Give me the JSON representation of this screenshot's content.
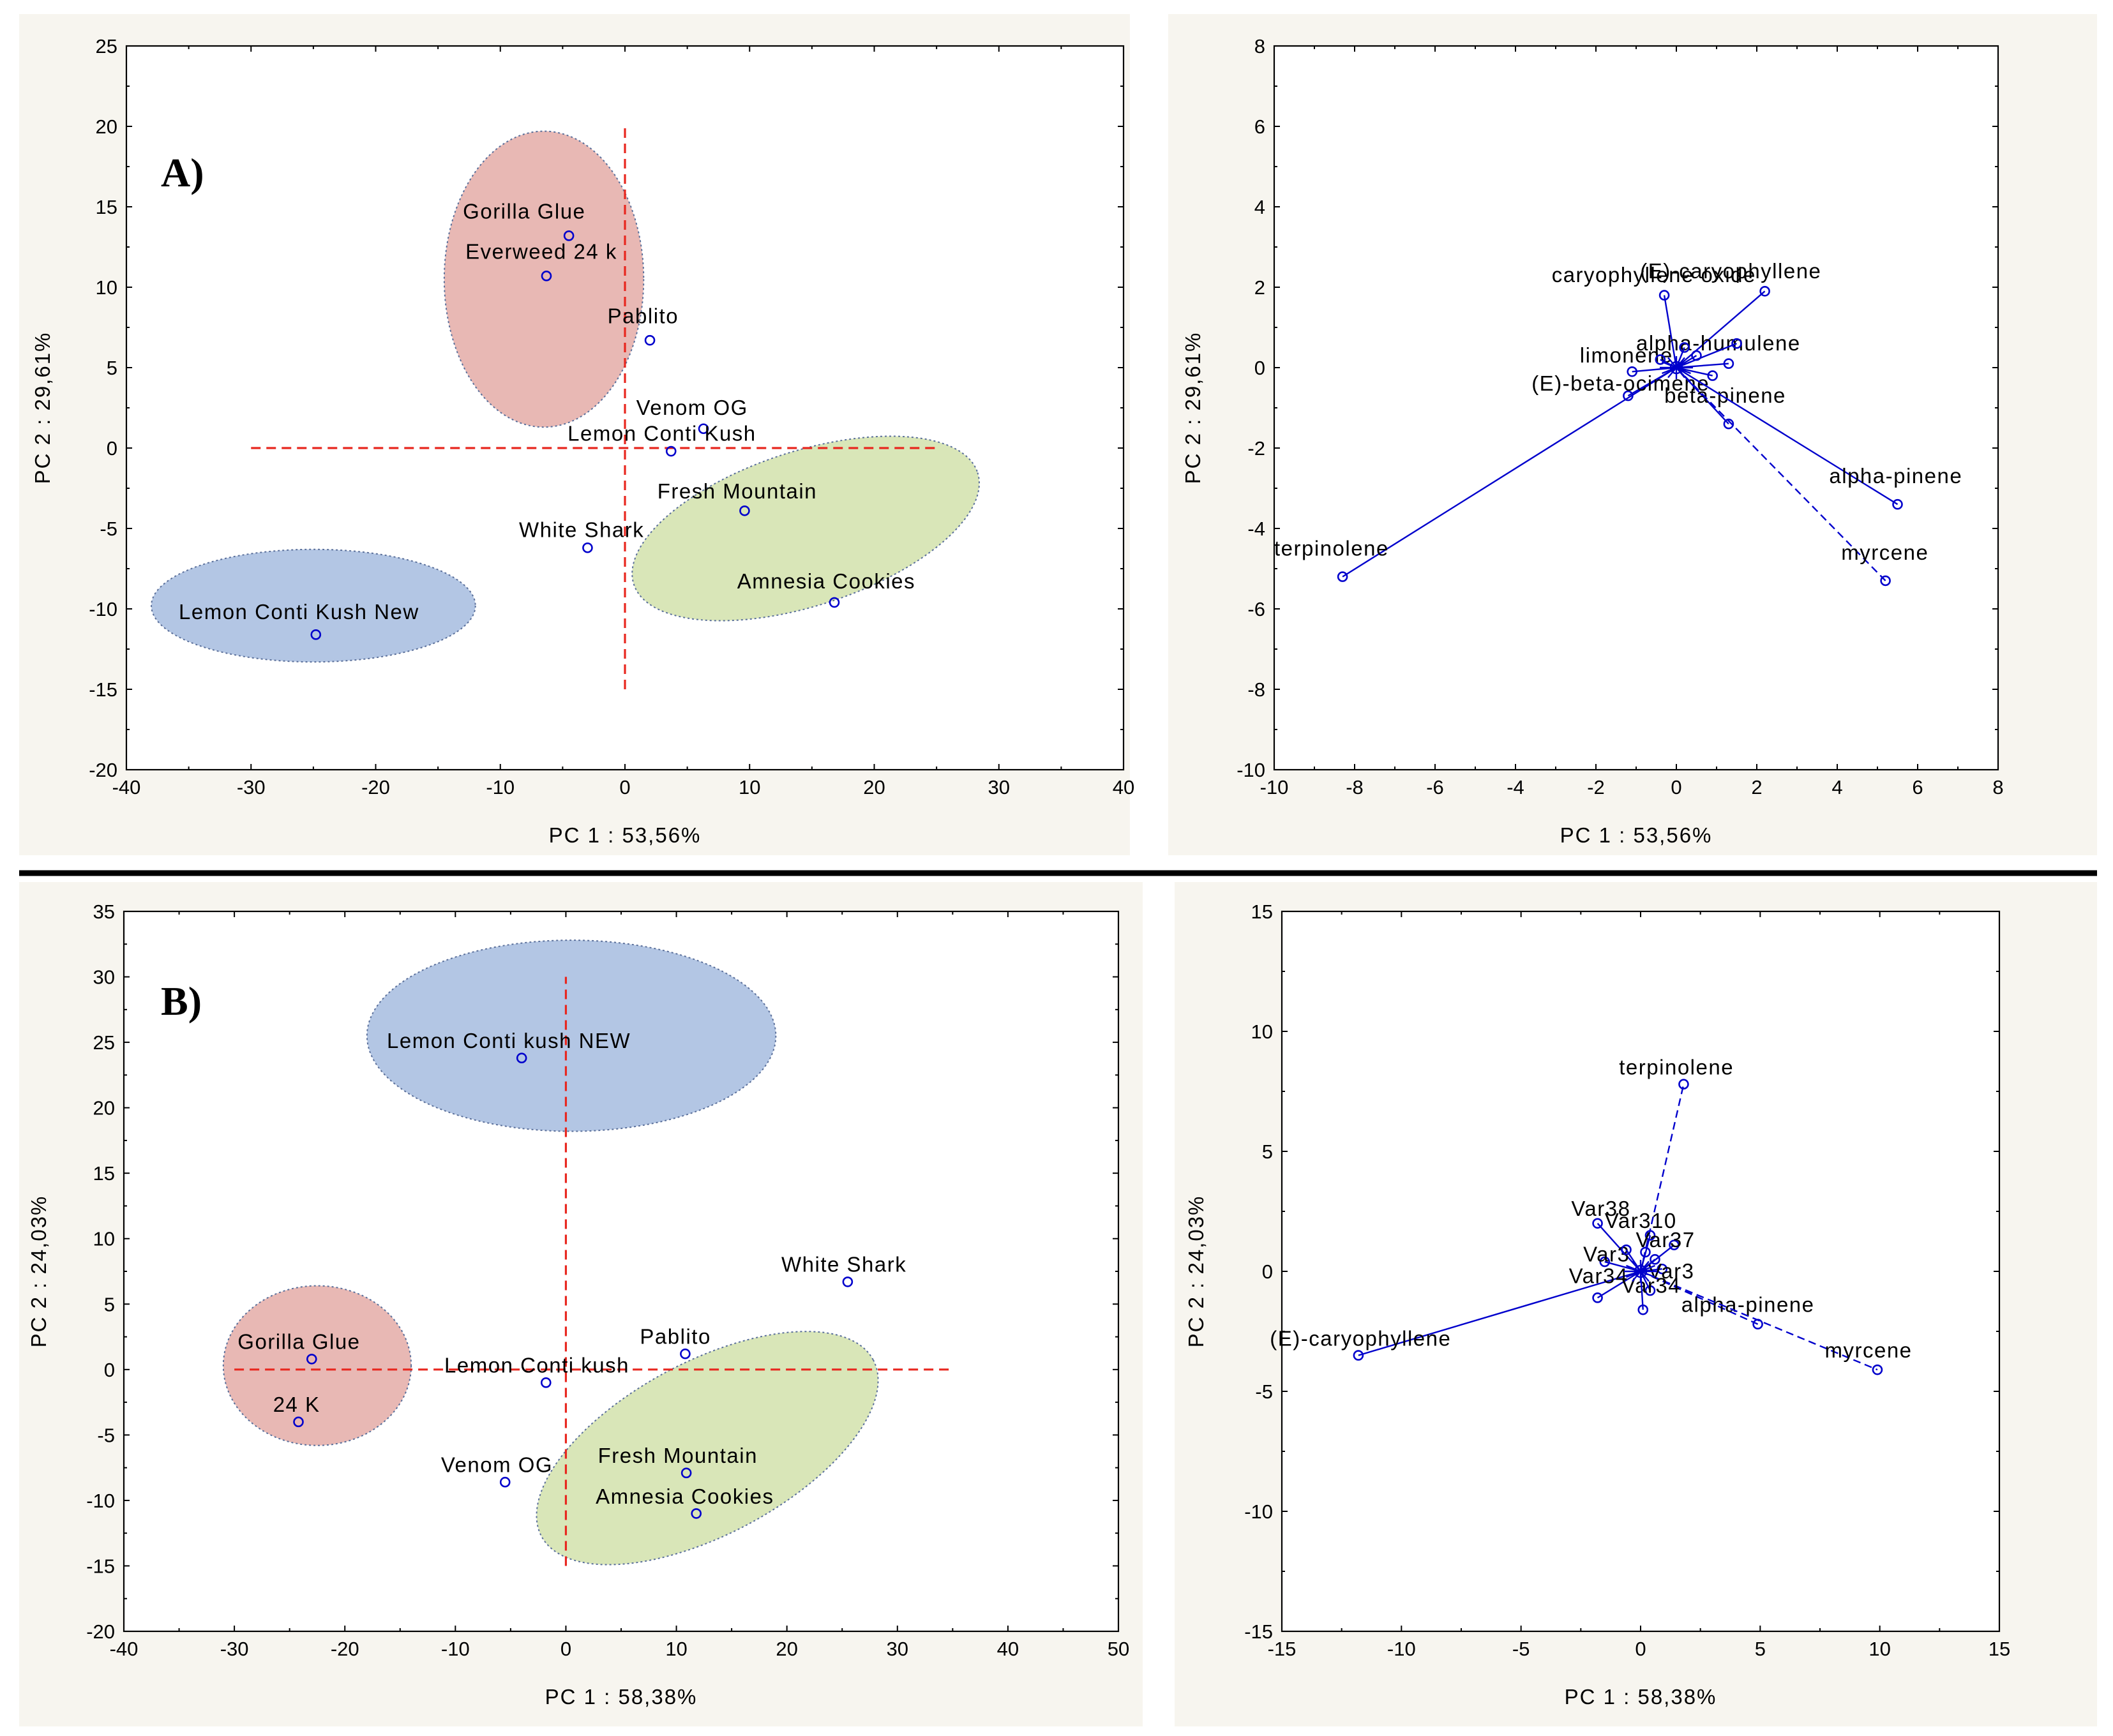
{
  "colors": {
    "points": "#0000cc",
    "reference_lines": "#e8271f",
    "cluster_red": "#e8b8b4",
    "cluster_blue": "#b3c6e4",
    "cluster_green": "#d9e6b8"
  },
  "chart_data": [
    {
      "id": "A-scores",
      "type": "scatter",
      "panel_label": "A)",
      "xlabel": "PC  1 : 53,56%",
      "ylabel": "PC  2 : 29,61%",
      "xlim": [
        -40,
        40
      ],
      "ylim": [
        -20,
        25
      ],
      "xticks": [
        -40,
        -30,
        -20,
        -10,
        0,
        10,
        20,
        30,
        40
      ],
      "yticks": [
        -20,
        -15,
        -10,
        -5,
        0,
        5,
        10,
        15,
        20,
        25
      ],
      "reference_lines": {
        "vertical_x": 0,
        "vertical_y": [
          -15,
          20
        ],
        "horizontal_y": 0,
        "horizontal_x": [
          -30,
          25
        ]
      },
      "clusters": [
        {
          "color": "#e8b8b4",
          "center": [
            -6.5,
            10.5
          ],
          "radius": [
            8,
            9.2
          ]
        },
        {
          "color": "#d9e6b8",
          "center": [
            14.5,
            -5
          ],
          "radius": [
            14.5,
            4.8
          ],
          "angle": -18
        },
        {
          "color": "#b3c6e4",
          "center": [
            -25,
            -9.8
          ],
          "radius": [
            13,
            3.5
          ]
        }
      ],
      "points": [
        {
          "label": "Gorilla Glue",
          "x": -4.5,
          "y": 13.2,
          "lx": -13,
          "ly": 14.7
        },
        {
          "label": "Everweed 24 k",
          "x": -6.3,
          "y": 10.7,
          "lx": -12.8,
          "ly": 12.2
        },
        {
          "label": "Pablito",
          "x": 2,
          "y": 6.7,
          "lx": -1.4,
          "ly": 8.2
        },
        {
          "label": "Venom OG",
          "x": 6.3,
          "y": 1.2,
          "lx": 0.9,
          "ly": 2.5
        },
        {
          "label": "Lemon Conti Kush",
          "x": 3.7,
          "y": -0.2,
          "lx": -4.6,
          "ly": 0.9
        },
        {
          "label": "Fresh Mountain",
          "x": 9.6,
          "y": -3.9,
          "lx": 2.6,
          "ly": -2.7
        },
        {
          "label": "White Shark",
          "x": -3,
          "y": -6.2,
          "lx": -8.5,
          "ly": -5.1
        },
        {
          "label": "Amnesia Cookies",
          "x": 16.8,
          "y": -9.6,
          "lx": 9,
          "ly": -8.3
        },
        {
          "label": "Lemon Conti Kush New",
          "x": -24.8,
          "y": -11.6,
          "lx": -35.8,
          "ly": -10.2
        }
      ]
    },
    {
      "id": "A-loadings",
      "type": "scatter",
      "xlabel": "PC  1 : 53,56%",
      "ylabel": "PC  2 : 29,61%",
      "xlim": [
        -10,
        8
      ],
      "ylim": [
        -10,
        8
      ],
      "xticks": [
        -10,
        -8,
        -6,
        -4,
        -2,
        0,
        2,
        4,
        6,
        8
      ],
      "yticks": [
        -10,
        -8,
        -6,
        -4,
        -2,
        0,
        2,
        4,
        6,
        8
      ],
      "origin": [
        0,
        0
      ],
      "vectors": [
        {
          "label": "terpinolene",
          "x": -8.3,
          "y": -5.2,
          "lx": -10.0,
          "ly": -4.5,
          "dashed": false
        },
        {
          "label": "(E)-beta-ocimene",
          "x": -1.2,
          "y": -0.7,
          "lx": -3.6,
          "ly": -0.4,
          "dashed": false
        },
        {
          "label": "limonene",
          "x": -1.1,
          "y": -0.1,
          "lx": -2.4,
          "ly": 0.3,
          "dashed": false
        },
        {
          "label": "caryophyllene oxide",
          "x": -0.3,
          "y": 1.8,
          "lx": -3.1,
          "ly": 2.3,
          "dashed": false
        },
        {
          "label": "(E)-caryophyllene",
          "x": 2.2,
          "y": 1.9,
          "lx": -0.9,
          "ly": 2.4,
          "dashed": false
        },
        {
          "label": "alpha-humulene",
          "x": 1.3,
          "y": 0.1,
          "lx": -1.0,
          "ly": 0.6,
          "dashed": false
        },
        {
          "label": "beta-pinene",
          "x": 1.3,
          "y": -1.4,
          "lx": -0.3,
          "ly": -0.7,
          "dashed": false
        },
        {
          "label": "alpha-pinene",
          "x": 5.5,
          "y": -3.4,
          "lx": 3.8,
          "ly": -2.7,
          "dashed": false
        },
        {
          "label": "myrcene",
          "x": 5.2,
          "y": -5.3,
          "lx": 4.1,
          "ly": -4.6,
          "dashed": true
        },
        {
          "label": "",
          "x": 1.5,
          "y": 0.6,
          "lx": 0,
          "ly": 0,
          "dashed": false
        },
        {
          "label": "",
          "x": 0.5,
          "y": 0.3,
          "lx": 0,
          "ly": 0,
          "dashed": false
        },
        {
          "label": "",
          "x": 0.2,
          "y": 0.5,
          "lx": 0,
          "ly": 0,
          "dashed": false
        },
        {
          "label": "",
          "x": -0.4,
          "y": 0.2,
          "lx": 0,
          "ly": 0,
          "dashed": false
        },
        {
          "label": "",
          "x": 0.9,
          "y": -0.2,
          "lx": 0,
          "ly": 0,
          "dashed": false
        }
      ]
    },
    {
      "id": "B-scores",
      "type": "scatter",
      "panel_label": "B)",
      "xlabel": "PC  1 : 58,38%",
      "ylabel": "PC  2 : 24,03%",
      "xlim": [
        -40,
        50
      ],
      "ylim": [
        -20,
        35
      ],
      "xticks": [
        -40,
        -30,
        -20,
        -10,
        0,
        10,
        20,
        30,
        40,
        50
      ],
      "yticks": [
        -20,
        -15,
        -10,
        -5,
        0,
        5,
        10,
        15,
        20,
        25,
        30,
        35
      ],
      "reference_lines": {
        "vertical_x": 0,
        "vertical_y": [
          -15,
          30
        ],
        "horizontal_y": 0,
        "horizontal_x": [
          -30,
          35
        ]
      },
      "clusters": [
        {
          "color": "#b3c6e4",
          "center": [
            0.5,
            25.5
          ],
          "radius": [
            18.5,
            7.3
          ]
        },
        {
          "color": "#e8b8b4",
          "center": [
            -22.5,
            0.3
          ],
          "radius": [
            8.5,
            6.1
          ]
        },
        {
          "color": "#d9e6b8",
          "center": [
            12.8,
            -6
          ],
          "radius": [
            17,
            6.6
          ],
          "angle": -28
        }
      ],
      "points": [
        {
          "label": "Lemon Conti kush NEW",
          "x": -4,
          "y": 23.8,
          "lx": -16.2,
          "ly": 25.1
        },
        {
          "label": "White Shark",
          "x": 25.5,
          "y": 6.7,
          "lx": 19.5,
          "ly": 8
        },
        {
          "label": "Pablito",
          "x": 10.8,
          "y": 1.2,
          "lx": 6.7,
          "ly": 2.5
        },
        {
          "label": "Gorilla Glue",
          "x": -23,
          "y": 0.8,
          "lx": -29.7,
          "ly": 2.1
        },
        {
          "label": "Lemon Conti kush",
          "x": -1.8,
          "y": -1,
          "lx": -11,
          "ly": 0.3
        },
        {
          "label": "24 K",
          "x": -24.2,
          "y": -4,
          "lx": -26.5,
          "ly": -2.7
        },
        {
          "label": "Venom OG",
          "x": -5.5,
          "y": -8.6,
          "lx": -11.3,
          "ly": -7.3
        },
        {
          "label": "Fresh Mountain",
          "x": 10.9,
          "y": -7.9,
          "lx": 2.9,
          "ly": -6.6
        },
        {
          "label": "Amnesia Cookies",
          "x": 11.8,
          "y": -11,
          "lx": 2.7,
          "ly": -9.7
        }
      ]
    },
    {
      "id": "B-loadings",
      "type": "scatter",
      "xlabel": "PC  1 : 58,38%",
      "ylabel": "PC  2 : 24,03%",
      "xlim": [
        -15,
        15
      ],
      "ylim": [
        -15,
        15
      ],
      "xticks": [
        -15,
        -10,
        -5,
        0,
        5,
        10,
        15
      ],
      "yticks": [
        -15,
        -10,
        -5,
        0,
        5,
        10,
        15
      ],
      "origin": [
        0,
        0
      ],
      "vectors": [
        {
          "label": "terpinolene",
          "x": 1.8,
          "y": 7.8,
          "lx": -0.9,
          "ly": 8.5,
          "dashed": true
        },
        {
          "label": "(E)-caryophyllene",
          "x": -11.8,
          "y": -3.5,
          "lx": -15.5,
          "ly": -2.8,
          "dashed": false
        },
        {
          "label": "alpha-pinene",
          "x": 4.9,
          "y": -2.2,
          "lx": 1.7,
          "ly": -1.4,
          "dashed": true
        },
        {
          "label": "myrcene",
          "x": 9.9,
          "y": -4.1,
          "lx": 7.7,
          "ly": -3.3,
          "dashed": true
        },
        {
          "label": "Var38",
          "x": -1.8,
          "y": 2,
          "lx": -2.9,
          "ly": 2.6,
          "dashed": false
        },
        {
          "label": "Var310",
          "x": 0.4,
          "y": 1.5,
          "lx": -1.5,
          "ly": 2.1,
          "dashed": false
        },
        {
          "label": "Var37",
          "x": 1.4,
          "y": 1.1,
          "lx": -0.2,
          "ly": 1.3,
          "dashed": false
        },
        {
          "label": "Var34",
          "x": -1.8,
          "y": -1.1,
          "lx": -3.0,
          "ly": -0.2,
          "dashed": false
        },
        {
          "label": "Var34",
          "x": 0.4,
          "y": -0.8,
          "lx": -0.8,
          "ly": -0.6,
          "dashed": false
        },
        {
          "label": "Var3",
          "x": -1.5,
          "y": 0.4,
          "lx": -2.4,
          "ly": 0.7,
          "dashed": false
        },
        {
          "label": "Var3",
          "x": 0.9,
          "y": 0.1,
          "lx": 0.3,
          "ly": 0.0,
          "dashed": false
        },
        {
          "label": "",
          "x": 0.1,
          "y": -1.6,
          "lx": 0,
          "ly": 0,
          "dashed": false
        },
        {
          "label": "",
          "x": 0.6,
          "y": 0.5,
          "lx": 0,
          "ly": 0,
          "dashed": false
        },
        {
          "label": "",
          "x": -0.6,
          "y": 0.9,
          "lx": 0,
          "ly": 0,
          "dashed": false
        },
        {
          "label": "",
          "x": 0.2,
          "y": 0.8,
          "lx": 0,
          "ly": 0,
          "dashed": false
        }
      ]
    }
  ]
}
